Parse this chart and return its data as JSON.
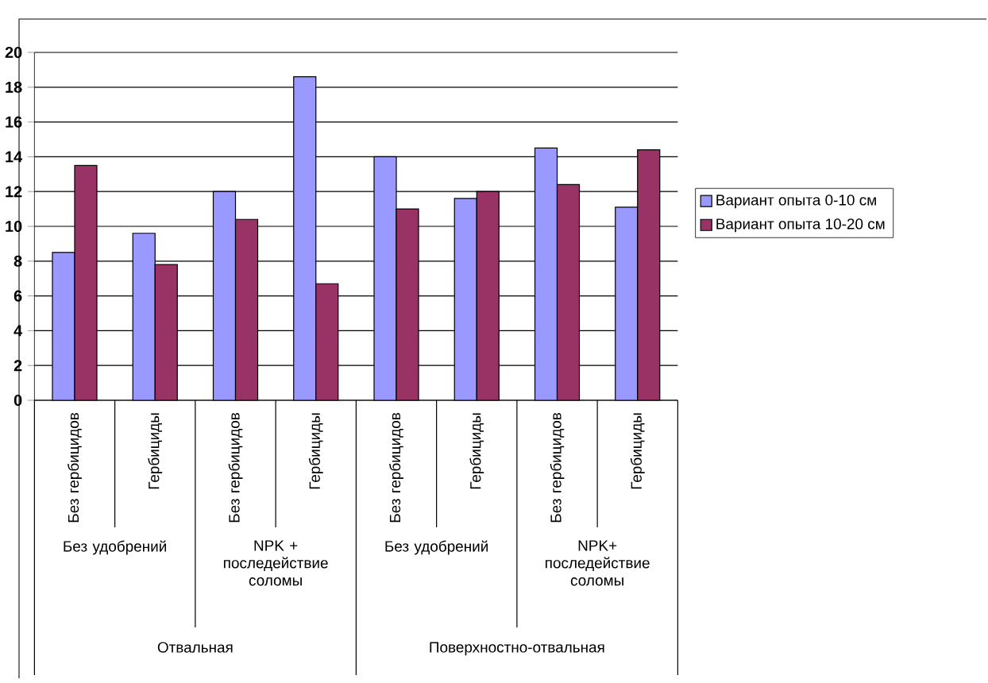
{
  "chart_data": {
    "type": "bar",
    "categories": [
      "Без гербицидов",
      "Гербициды",
      "Без гербицидов",
      "Гербициды",
      "Без гербицидов",
      "Гербициды",
      "Без гербицидов",
      "Гербициды"
    ],
    "series": [
      {
        "name": "Вариант опыта 0-10 см",
        "color": "#9999ff",
        "values": [
          8.5,
          9.6,
          12.0,
          18.6,
          14.0,
          11.6,
          14.5,
          11.1
        ]
      },
      {
        "name": "Вариант опыта 10-20 см",
        "color": "#993366",
        "values": [
          13.5,
          7.8,
          10.4,
          6.7,
          11.0,
          12.0,
          12.4,
          14.4
        ]
      }
    ],
    "annotations": [
      "Без удобрений",
      "NPK + последействие соломы",
      "Без удобрений",
      "NPK+ последействие соломы",
      "Отвальная",
      "Поверхностно-отвальная"
    ],
    "ylim": [
      0,
      20
    ],
    "yticks": [
      0,
      2,
      4,
      6,
      8,
      10,
      12,
      14,
      16,
      18,
      20
    ],
    "grid": "y",
    "legend": "right"
  }
}
